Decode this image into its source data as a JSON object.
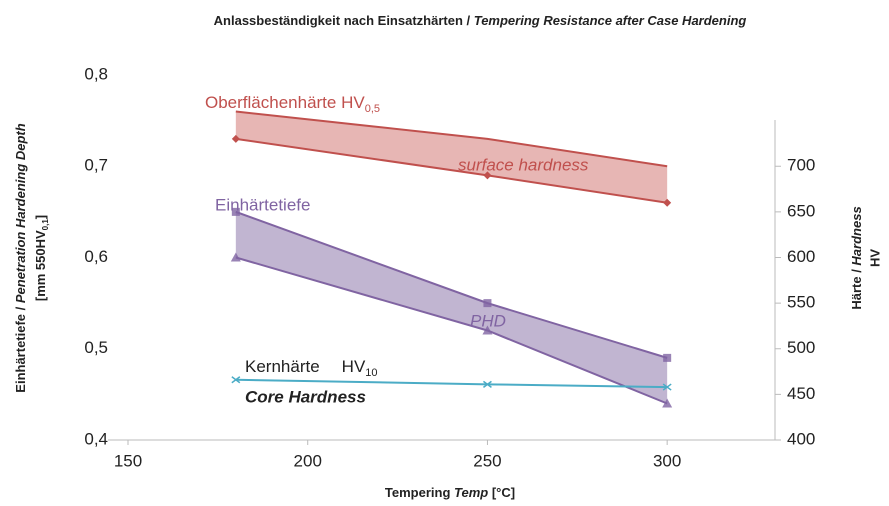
{
  "chart_data": {
    "type": "band-line",
    "title": "Anlassbeständigkeit nach Einsatzhärten / ",
    "title_en": "Tempering Resistance after Case Hardening",
    "ylabel": "Einhärtetiefe / ",
    "ylabel_en": "Penetration Hardening Depth",
    "ylabel_unit": "[mm 550HV",
    "ylabel_unit_sub": "0,1",
    "ylabel_unit_end": "]",
    "y2label": "Härte / ",
    "y2label_en": "Hardness",
    "y2label_unit": "HV",
    "xlabel": "Tempering ",
    "xlabel_en": "Temp",
    "xlabel_unit": " [°C]",
    "x": [
      180,
      250,
      300
    ],
    "xlim": [
      150,
      330
    ],
    "xticks": [
      150,
      200,
      250,
      300
    ],
    "ylim": [
      0.4,
      0.8
    ],
    "yticks": [
      {
        "value": 0.4,
        "label": "0,4"
      },
      {
        "value": 0.5,
        "label": "0,5"
      },
      {
        "value": 0.6,
        "label": "0,6"
      },
      {
        "value": 0.7,
        "label": "0,7"
      },
      {
        "value": 0.8,
        "label": "0,8"
      }
    ],
    "y2lim": [
      400,
      800
    ],
    "y2ticks": [
      400,
      450,
      500,
      550,
      600,
      650,
      700
    ],
    "bands": [
      {
        "label": "Oberflächenhärte HV",
        "label_sub": "0,5",
        "label_en": "surface hardness",
        "axis": "y2",
        "color": "#c0504d",
        "fill": "#e3a9a7",
        "upper": [
          760,
          730,
          700
        ],
        "lower": [
          730,
          690,
          660
        ],
        "upper_marker": "none",
        "lower_marker": "diamond"
      },
      {
        "label": "Einhärtetiefe",
        "label_en": "PHD",
        "axis": "y",
        "color": "#8064a2",
        "fill": "#b6a8c9",
        "upper": [
          0.65,
          0.55,
          0.49
        ],
        "lower": [
          0.6,
          0.52,
          0.44
        ],
        "upper_marker": "square",
        "lower_marker": "triangle"
      }
    ],
    "series": [
      {
        "label": "Kernhärte",
        "label_unit": "HV",
        "label_sub": "10",
        "label_en": "Core Hardness",
        "axis": "y2",
        "color": "#4bacc6",
        "values": [
          466,
          461,
          458
        ],
        "marker": "cross"
      }
    ]
  }
}
